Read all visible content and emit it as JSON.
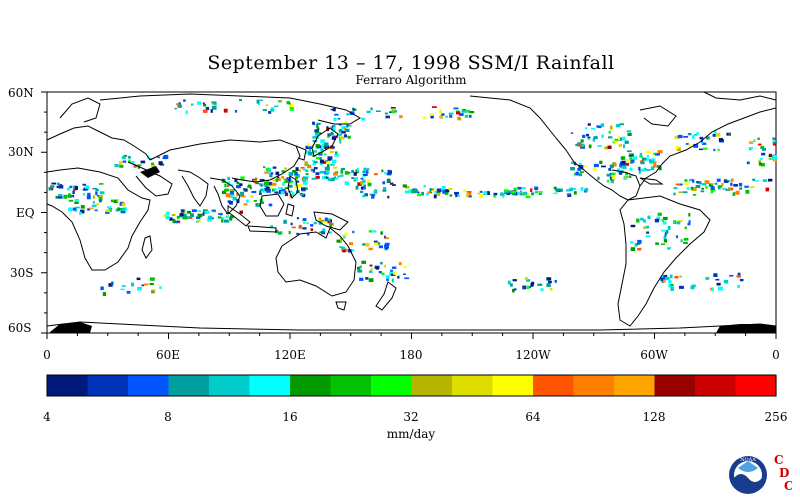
{
  "title": "September 13 – 17, 1998 SSM/I Rainfall",
  "subtitle": "Ferraro Algorithm",
  "map": {
    "lat_ticks": [
      "60N",
      "30N",
      "EQ",
      "30S",
      "60S"
    ],
    "lon_ticks": [
      "0",
      "60E",
      "120E",
      "180",
      "120W",
      "60W",
      "0"
    ]
  },
  "colorbar": {
    "colors": [
      "#001a7a",
      "#0033b8",
      "#0055ff",
      "#00a0a0",
      "#00cccc",
      "#00ffff",
      "#009900",
      "#00c200",
      "#00ff00",
      "#b5b500",
      "#dddd00",
      "#ffff00",
      "#ff5500",
      "#ff7f00",
      "#ffa500",
      "#990000",
      "#cc0000",
      "#ff0000"
    ],
    "tick_labels": [
      "4",
      "8",
      "16",
      "32",
      "64",
      "128",
      "256"
    ],
    "units": "mm/day"
  },
  "logo": {
    "name": "NOAA",
    "letters": [
      "C",
      "D",
      "C"
    ]
  }
}
